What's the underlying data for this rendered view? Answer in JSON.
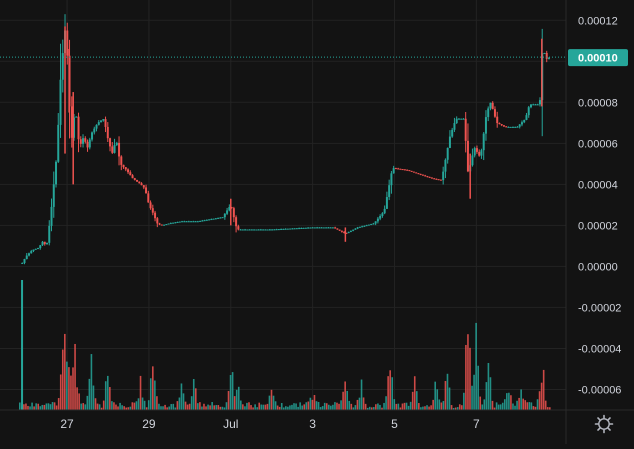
{
  "colors": {
    "background": "#131313",
    "grid": "#232323",
    "axis_text": "#d1d4dc",
    "up": "#26a69a",
    "down": "#ef5350",
    "last_price_line": "#26a69a",
    "last_price_label_bg": "#26a69a",
    "last_price_label_text": "#ffffff"
  },
  "icons": {
    "settings": "gear-icon"
  },
  "chart_data": {
    "type": "candlestick",
    "title": "",
    "xlabel": "",
    "ylabel": "",
    "y_range": [
      -7e-05,
      0.000125
    ],
    "y_ticks": [
      "0.00012",
      "0.00010",
      "0.00008",
      "0.00006",
      "0.00004",
      "0.00002",
      "0.00000",
      "-0.00002",
      "-0.00004",
      "-0.00006"
    ],
    "x_ticks": [
      {
        "label": "27",
        "day": 27
      },
      {
        "label": "29",
        "day": 29
      },
      {
        "label": "Jul",
        "day": 31
      },
      {
        "label": "3",
        "day": 33
      },
      {
        "label": "5",
        "day": 35
      },
      {
        "label": "7",
        "day": 37
      }
    ],
    "x_range_days": [
      25.85,
      38.8
    ],
    "grid": true,
    "last_price": {
      "label": "0.00010",
      "value": 0.000102
    },
    "price_path": [
      [
        25.9,
        1.5e-06
      ],
      [
        26.0,
        5e-06
      ],
      [
        26.15,
        8e-06
      ],
      [
        26.3,
        9e-06
      ],
      [
        26.4,
        1.2e-05
      ],
      [
        26.5,
        1e-05
      ],
      [
        26.6,
        2.5e-05
      ],
      [
        26.75,
        5.5e-05
      ],
      [
        26.85,
        9.5e-05
      ],
      [
        26.95,
        0.000115
      ],
      [
        27.0,
        0.000105
      ],
      [
        27.1,
        6e-05
      ],
      [
        27.2,
        7.8e-05
      ],
      [
        27.3,
        5.8e-05
      ],
      [
        27.4,
        6.3e-05
      ],
      [
        27.5,
        5.8e-05
      ],
      [
        27.6,
        6.5e-05
      ],
      [
        27.75,
        7e-05
      ],
      [
        27.9,
        7.2e-05
      ],
      [
        28.0,
        6.2e-05
      ],
      [
        28.1,
        5.5e-05
      ],
      [
        28.2,
        6.2e-05
      ],
      [
        28.3,
        5e-05
      ],
      [
        28.45,
        4.7e-05
      ],
      [
        28.6,
        4.3e-05
      ],
      [
        28.8,
        4e-05
      ],
      [
        28.9,
        3.8e-05
      ],
      [
        29.0,
        3e-05
      ],
      [
        29.1,
        2.6e-05
      ],
      [
        29.2,
        2.1e-05
      ],
      [
        29.3,
        2e-05
      ],
      [
        29.5,
        2.1e-05
      ],
      [
        29.8,
        2.2e-05
      ],
      [
        30.2,
        2.2e-05
      ],
      [
        30.5,
        2.3e-05
      ],
      [
        30.8,
        2.4e-05
      ],
      [
        31.0,
        3e-05
      ],
      [
        31.05,
        2.6e-05
      ],
      [
        31.15,
        1.8e-05
      ],
      [
        31.5,
        1.8e-05
      ],
      [
        32.0,
        1.8e-05
      ],
      [
        32.5,
        1.85e-05
      ],
      [
        33.0,
        1.9e-05
      ],
      [
        33.5,
        1.9e-05
      ],
      [
        33.8,
        1.6e-05
      ],
      [
        34.1,
        1.9e-05
      ],
      [
        34.5,
        2.1e-05
      ],
      [
        34.75,
        2.7e-05
      ],
      [
        34.95,
        4.8e-05
      ],
      [
        35.3,
        4.7e-05
      ],
      [
        35.6,
        4.5e-05
      ],
      [
        35.9,
        4.3e-05
      ],
      [
        36.15,
        4.2e-05
      ],
      [
        36.35,
        6.3e-05
      ],
      [
        36.5,
        7.2e-05
      ],
      [
        36.7,
        7.2e-05
      ],
      [
        36.8,
        4.5e-05
      ],
      [
        36.95,
        5.8e-05
      ],
      [
        37.1,
        5.3e-05
      ],
      [
        37.25,
        7.5e-05
      ],
      [
        37.35,
        8e-05
      ],
      [
        37.5,
        7e-05
      ],
      [
        37.7,
        6.8e-05
      ],
      [
        38.0,
        6.8e-05
      ],
      [
        38.2,
        7.2e-05
      ],
      [
        38.3,
        7.9e-05
      ],
      [
        38.55,
        7.9e-05
      ],
      [
        38.62,
        0.000108
      ],
      [
        38.7,
        0.000101
      ],
      [
        38.8,
        0.000102
      ]
    ],
    "spikes": [
      {
        "day": 26.95,
        "high": 0.000117,
        "low": 5.5e-05
      },
      {
        "day": 27.05,
        "high": 0.000106,
        "low": 7.5e-05
      },
      {
        "day": 27.15,
        "high": 8.5e-05,
        "low": 4e-05
      },
      {
        "day": 31.0,
        "high": 3.3e-05,
        "low": 2e-05
      },
      {
        "day": 33.8,
        "high": 1.9e-05,
        "low": 1.2e-05
      },
      {
        "day": 36.85,
        "high": 5.5e-05,
        "low": 3.3e-05
      },
      {
        "day": 38.6,
        "high": 0.000111,
        "low": 7.8e-05
      }
    ],
    "volume_hint": "volume bars along bottom, with tall bursts near Jun 27, Jul 1 and Jul 6-8"
  }
}
